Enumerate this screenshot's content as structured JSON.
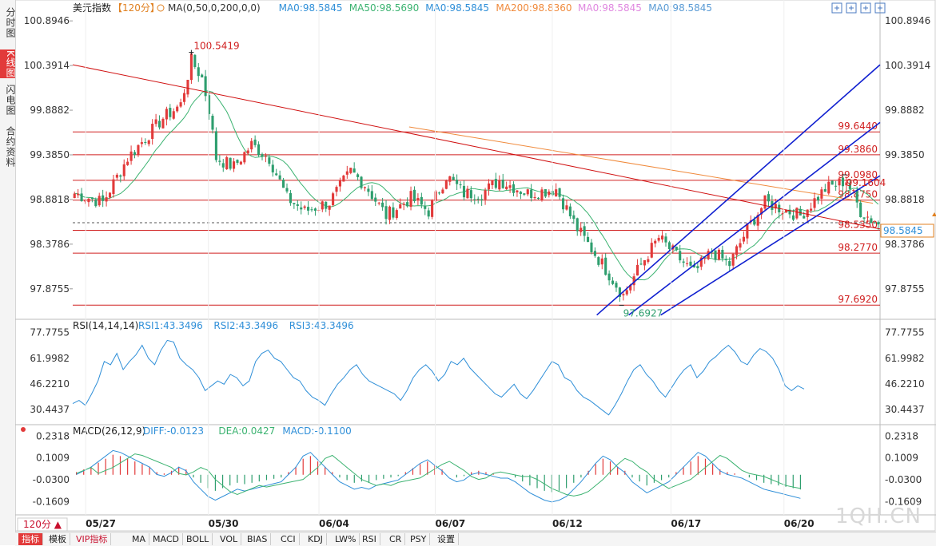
{
  "side_tabs": [
    {
      "label": "分时图",
      "active": false
    },
    {
      "label": "K线图",
      "active": true
    },
    {
      "label": "闪电图",
      "active": false
    },
    {
      "label": "合约资料",
      "active": false
    }
  ],
  "header": {
    "symbol": "美元指数",
    "period": "【120分】",
    "items": [
      {
        "text": "MA(0,50,0,200,0,0)",
        "color": "#333333"
      },
      {
        "text": "MA0:98.5845",
        "color": "#2f8fd8"
      },
      {
        "text": "MA50:98.5690",
        "color": "#3cb371"
      },
      {
        "text": "MA0:98.5845",
        "color": "#2f8fd8"
      },
      {
        "text": "MA200:98.8360",
        "color": "#f08a3c"
      },
      {
        "text": "MA0:98.5845",
        "color": "#e088e0"
      },
      {
        "text": "MA0:98.5845",
        "color": "#5a9bd5"
      }
    ]
  },
  "rsi_header": {
    "title": "RSI(14,14,14)",
    "items": [
      {
        "text": "RSI1:43.3496",
        "color": "#2f8fd8"
      },
      {
        "text": "RSI2:43.3496",
        "color": "#2f8fd8"
      },
      {
        "text": "RSI3:43.3496",
        "color": "#2f8fd8"
      }
    ]
  },
  "macd_header": {
    "title": "MACD(26,12,9)",
    "items": [
      {
        "text": "DIFF:-0.0123",
        "color": "#2f8fd8"
      },
      {
        "text": "DEA:0.0427",
        "color": "#3cb371"
      },
      {
        "text": "MACD:-0.1100",
        "color": "#2f8fd8"
      }
    ]
  },
  "colors": {
    "up": "#e23a3a",
    "down": "#2e9e6e",
    "line": "#d01010",
    "channel": "#1020d0",
    "ma50": "#3cb371",
    "ma200": "#f08a3c",
    "rsi": "#2f8fd8"
  },
  "period_button": "120分 ▲",
  "bottom_tabs": [
    {
      "label": "指标",
      "selected": true
    },
    {
      "label": "模板",
      "selected": false
    },
    {
      "label": "VIP指标",
      "selected": false,
      "vip": true
    },
    {
      "label": "MA",
      "selected": false
    },
    {
      "label": "MACD",
      "selected": false
    },
    {
      "label": "BOLL",
      "selected": false
    },
    {
      "label": "VOL",
      "selected": false
    },
    {
      "label": "BIAS",
      "selected": false
    },
    {
      "label": "CCI",
      "selected": false
    },
    {
      "label": "KDJ",
      "selected": false
    },
    {
      "label": "LW%",
      "selected": false
    },
    {
      "label": "RSI",
      "selected": false
    },
    {
      "label": "CR",
      "selected": false
    },
    {
      "label": "PSY",
      "selected": false
    },
    {
      "label": "设置",
      "selected": false
    }
  ],
  "watermark": "1QH.CN",
  "chart_data": {
    "type": "candlestick",
    "main": {
      "y_ticks": [
        "100.8946",
        "100.3914",
        "99.8882",
        "99.3850",
        "98.8818",
        "98.3786",
        "97.8755"
      ],
      "ylim": [
        97.55,
        100.95
      ],
      "x_labels": [
        "05/27",
        "05/30",
        "06/04",
        "06/07",
        "06/12",
        "06/17",
        "06/20"
      ],
      "current_price": "98.5845",
      "peak_label": "100.5419",
      "trough_label": "97.6927",
      "recent_high_label": "99.1604",
      "horizontal_levels": [
        99.644,
        99.386,
        99.098,
        98.875,
        98.535,
        98.277,
        97.692
      ],
      "horizontal_labels": [
        "99.6440",
        "99.3860",
        "99.0980",
        "98.8750",
        "98.5350",
        "98.2770",
        "97.6920"
      ]
    },
    "rsi": {
      "y_ticks": [
        "77.7755",
        "61.9982",
        "46.2210",
        "30.4437"
      ],
      "ylim": [
        22,
        86
      ],
      "values": [
        34,
        36,
        33,
        40,
        48,
        60,
        58,
        65,
        55,
        60,
        64,
        70,
        62,
        58,
        67,
        73,
        72,
        62,
        58,
        55,
        50,
        42,
        45,
        48,
        46,
        52,
        50,
        45,
        48,
        60,
        65,
        67,
        62,
        60,
        55,
        50,
        48,
        42,
        38,
        36,
        33,
        40,
        46,
        50,
        55,
        58,
        52,
        48,
        46,
        44,
        42,
        40,
        36,
        42,
        50,
        55,
        58,
        54,
        48,
        52,
        60,
        58,
        62,
        56,
        52,
        48,
        44,
        40,
        38,
        42,
        46,
        40,
        37,
        42,
        48,
        54,
        60,
        58,
        50,
        48,
        42,
        38,
        36,
        33,
        30,
        27,
        33,
        40,
        48,
        55,
        58,
        52,
        48,
        42,
        38,
        44,
        50,
        55,
        58,
        50,
        54,
        60,
        63,
        67,
        70,
        66,
        60,
        58,
        64,
        68,
        66,
        62,
        55,
        45,
        42,
        45,
        43
      ]
    },
    "macd": {
      "y_ticks": [
        "0.2318",
        "0.1009",
        "-0.0300",
        "-0.1609"
      ],
      "ylim": [
        -0.24,
        0.3
      ],
      "bars": [
        0.02,
        0.04,
        0.06,
        0.09,
        0.12,
        0.15,
        0.14,
        0.12,
        0.1,
        0.08,
        0.06,
        0.02,
        0.01,
        0.03,
        0.06,
        0.04,
        -0.02,
        -0.06,
        -0.1,
        -0.12,
        -0.1,
        -0.08,
        -0.06,
        -0.07,
        -0.06,
        -0.05,
        -0.04,
        -0.03,
        -0.02,
        0.02,
        0.06,
        0.12,
        0.14,
        0.1,
        0.06,
        0.02,
        -0.02,
        -0.04,
        -0.06,
        -0.05,
        -0.06,
        -0.04,
        -0.03,
        -0.02,
        -0.01,
        0.02,
        0.05,
        0.08,
        0.1,
        0.07,
        0.04,
        0.0,
        -0.02,
        -0.01,
        0.02,
        0.03,
        0.02,
        0.01,
        0.0,
        0.0,
        -0.02,
        -0.05,
        -0.08,
        -0.1,
        -0.12,
        -0.13,
        -0.12,
        -0.1,
        -0.06,
        -0.02,
        0.03,
        0.08,
        0.12,
        0.1,
        0.06,
        0.03,
        -0.02,
        -0.05,
        -0.08,
        -0.06,
        -0.04,
        -0.02,
        0.02,
        0.06,
        0.1,
        0.14,
        0.12,
        0.08,
        0.04,
        0.02,
        0.01,
        0.0,
        -0.02,
        -0.04,
        -0.06,
        -0.07,
        -0.08,
        -0.09,
        -0.1,
        -0.11
      ]
    }
  }
}
